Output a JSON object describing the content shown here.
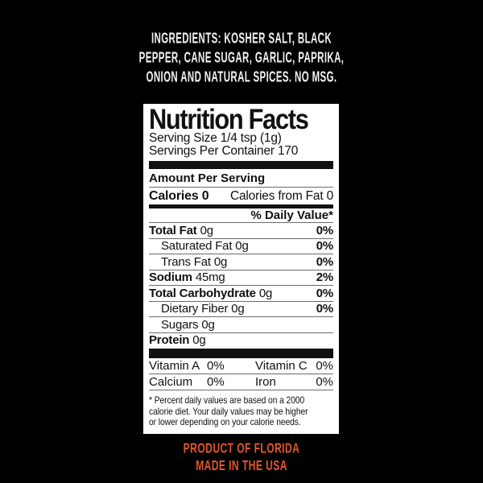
{
  "colors": {
    "background": "#000000",
    "panel": "#ffffff",
    "ink": "#111111",
    "hairline": "#6b6b6b",
    "ingredients_white": "#f2f2f2",
    "accent_orange": "#e1562c"
  },
  "ingredients": {
    "lines": [
      "INGREDIENTS: KOSHER SALT, BLACK",
      "PEPPER, CANE SUGAR, GARLIC, PAPRIKA,",
      "ONION AND NATURAL SPICES. NO MSG."
    ]
  },
  "panel": {
    "title": "Nutrition Facts",
    "serving_size": "Serving Size 1/4 tsp (1g)",
    "servings_per_container": "Servings Per Container 170",
    "amount_per_serving": "Amount Per Serving",
    "calories": "Calories 0",
    "calories_from_fat": "Calories from Fat 0",
    "daily_value_header": "% Daily Value*",
    "rows": [
      {
        "label": "Total Fat",
        "amount": "0g",
        "dv": "0%"
      },
      {
        "label": "Saturated Fat",
        "amount": "0g",
        "dv": "0%"
      },
      {
        "label": "Trans Fat",
        "amount": "0g",
        "dv": "0%"
      },
      {
        "label": "Sodium",
        "amount": "45mg",
        "dv": "2%"
      },
      {
        "label": "Total Carbohydrate",
        "amount": "0g",
        "dv": "0%"
      },
      {
        "label": "Dietary Fiber",
        "amount": "0g",
        "dv": "0%"
      },
      {
        "label": "Sugars",
        "amount": "0g",
        "dv": ""
      },
      {
        "label": "Protein",
        "amount": "0g",
        "dv": ""
      }
    ],
    "vitamins": [
      {
        "label": "Vitamin A",
        "value": "0%",
        "label2": "Vitamin C",
        "value2": "0%"
      },
      {
        "label": "Calcium",
        "value": "0%",
        "label2": "Iron",
        "value2": "0%"
      }
    ],
    "footnote_lines": [
      "* Percent daily values are based on a 2000",
      "calorie diet. Your daily values may be higher",
      "or lower depending on your calorie needs."
    ]
  },
  "footer": {
    "lines": [
      "PRODUCT OF FLORIDA",
      "MADE IN THE USA"
    ]
  }
}
